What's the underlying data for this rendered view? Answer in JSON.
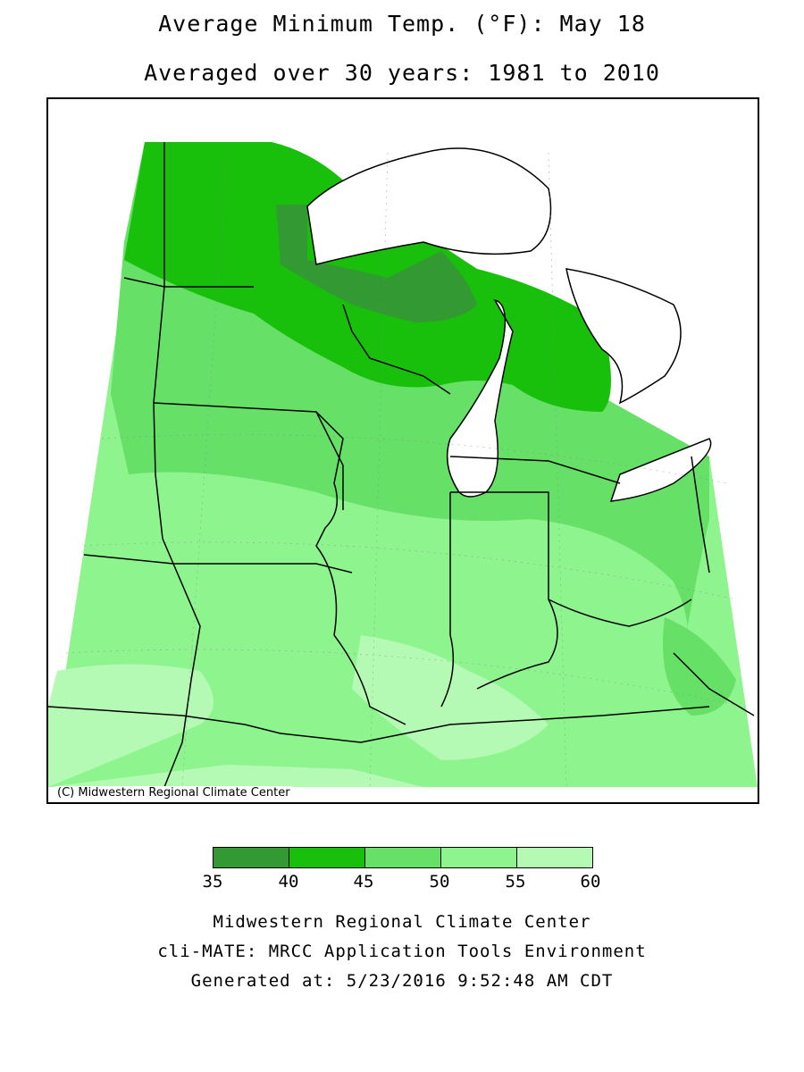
{
  "title_line1": "Average Minimum Temp. (°F): May 18",
  "title_line2": "Averaged over 30 years: 1981 to 2010",
  "copyright": "(C) Midwestern Regional Climate Center",
  "legend": {
    "ticks": [
      "35",
      "40",
      "45",
      "50",
      "55",
      "60"
    ],
    "bins": [
      {
        "range": "35-40",
        "color": "#339933"
      },
      {
        "range": "40-45",
        "color": "#19c00b"
      },
      {
        "range": "45-50",
        "color": "#66e066"
      },
      {
        "range": "50-55",
        "color": "#8ef48e"
      },
      {
        "range": "55-60",
        "color": "#b4fab4"
      }
    ]
  },
  "footer": {
    "line1": "Midwestern Regional Climate Center",
    "line2": "cli-MATE: MRCC Application Tools Environment",
    "line3": "Generated at: 5/23/2016 9:52:48 AM CDT"
  },
  "map": {
    "region": "Midwestern United States",
    "variable": "Average minimum temperature (°F)",
    "colors": {
      "35-40": "#339933",
      "40-45": "#19c00b",
      "45-50": "#66e066",
      "50-55": "#8ef48e",
      "55-60": "#b4fab4",
      "water": "#ffffff",
      "boundary": "#000000"
    }
  }
}
